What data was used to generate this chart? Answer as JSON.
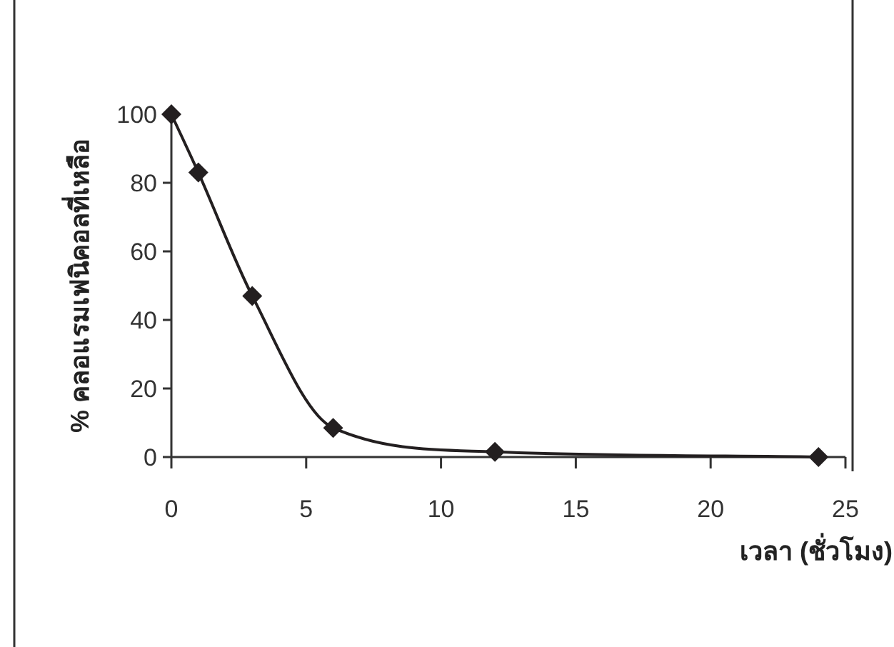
{
  "chart_data": {
    "type": "line",
    "xlabel": "เวลา (ชั่วโมง)",
    "ylabel": "% คลอแรมเฟนิคอลที่เหลือ",
    "x": [
      0,
      1,
      3,
      6,
      12,
      24
    ],
    "series": [
      {
        "color": "#231f20",
        "values": [
          100,
          83,
          47,
          8.5,
          1.5,
          0
        ]
      }
    ],
    "xlim": [
      0,
      25
    ],
    "xticks": [
      0,
      5,
      10,
      15,
      20,
      25
    ],
    "ylim": [
      0,
      100
    ],
    "yticks": [
      0,
      20,
      40,
      60,
      80,
      100
    ],
    "marker": "diamond",
    "line_style": "solid",
    "grid": false
  }
}
